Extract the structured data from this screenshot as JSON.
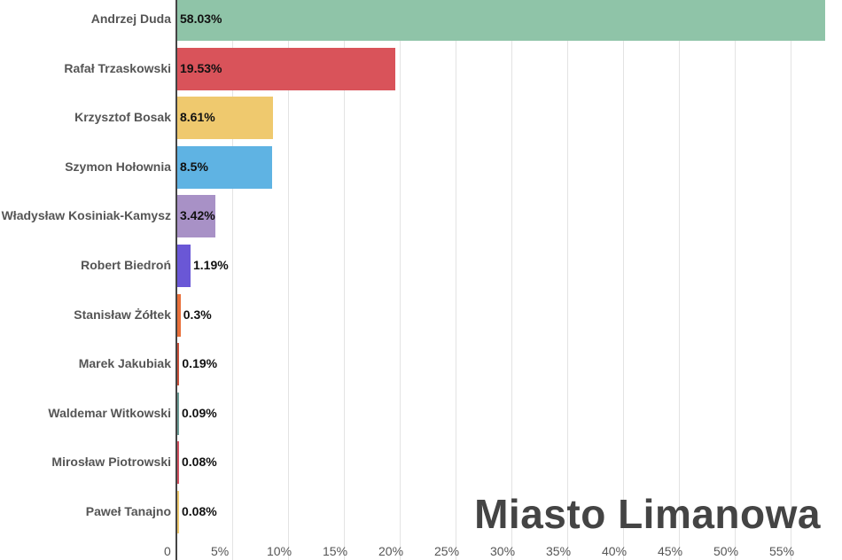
{
  "chart_data": {
    "type": "bar",
    "orientation": "horizontal",
    "title": "Miasto Limanowa",
    "xlabel": "",
    "ylabel": "",
    "xlim": [
      0,
      58.03
    ],
    "grid": true,
    "x_ticks": [
      "0",
      "5%",
      "10%",
      "15%",
      "20%",
      "25%",
      "30%",
      "35%",
      "40%",
      "45%",
      "50%",
      "55%"
    ],
    "categories": [
      "Andrzej Duda",
      "Rafał Trzaskowski",
      "Krzysztof Bosak",
      "Szymon Hołownia",
      "Władysław Kosiniak-Kamysz",
      "Robert Biedroń",
      "Stanisław Żółtek",
      "Marek Jakubiak",
      "Waldemar Witkowski",
      "Mirosław Piotrowski",
      "Paweł Tanajno"
    ],
    "values": [
      58.03,
      19.53,
      8.61,
      8.5,
      3.42,
      1.19,
      0.3,
      0.19,
      0.09,
      0.08,
      0.08
    ],
    "value_labels": [
      "58.03%",
      "19.53%",
      "8.61%",
      "8.5%",
      "3.42%",
      "1.19%",
      "0.3%",
      "0.19%",
      "0.09%",
      "0.08%",
      "0.08%"
    ],
    "colors": [
      "#8fc4a8",
      "#d9535a",
      "#efc96e",
      "#5fb3e3",
      "#a891c6",
      "#6a57d6",
      "#e8703a",
      "#c8503a",
      "#6a9a94",
      "#d05060",
      "#efc96e"
    ]
  }
}
